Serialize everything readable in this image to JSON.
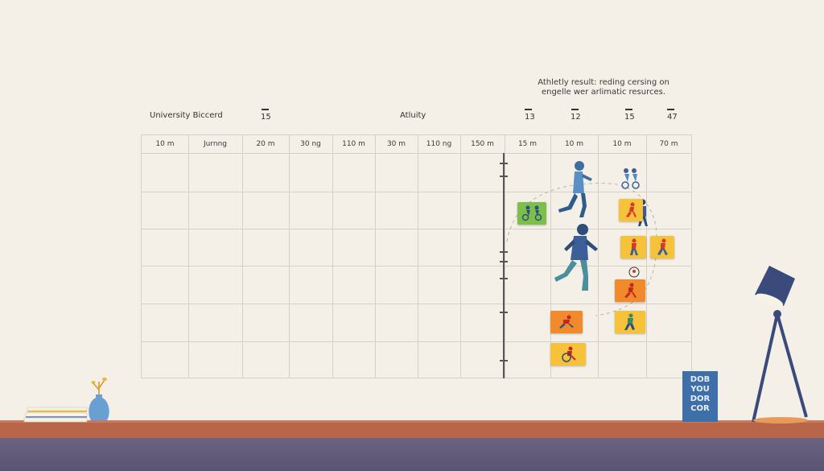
{
  "caption": {
    "line1": "Athletly result: reding cersing on",
    "line2": "engelle wer arlimatic resurces."
  },
  "top_labels": {
    "left_title": "University Biccerd",
    "num_a": "15",
    "center_title": "Atluity",
    "num_b": "13",
    "num_c": "12",
    "num_d": "15",
    "num_e": "47"
  },
  "columns": [
    "10 m",
    "Jurnng",
    "20 m",
    "30 ng",
    "110 m",
    "30 m",
    "110 ng",
    "150 m",
    "15 m",
    "10 m",
    "10 m",
    "70 m"
  ],
  "book_sign": {
    "lines": [
      "DOB",
      "YOU",
      "DOR",
      "COR"
    ]
  },
  "colors": {
    "background": "#f4f0e7",
    "grid_line": "#d4d0c8",
    "card_yellow": "#f5c23a",
    "card_orange": "#f08a2c",
    "card_green": "#7cbf4a",
    "runner_blue": "#3d5f99",
    "shelf": "#b8654a",
    "floor": "#5f5878",
    "lamp": "#3a4a7a"
  },
  "icons": {
    "runner": "runner-icon",
    "cyclist": "cyclist-icon",
    "lamp": "desk-lamp-icon",
    "vase": "vase-icon",
    "books": "books-icon"
  }
}
